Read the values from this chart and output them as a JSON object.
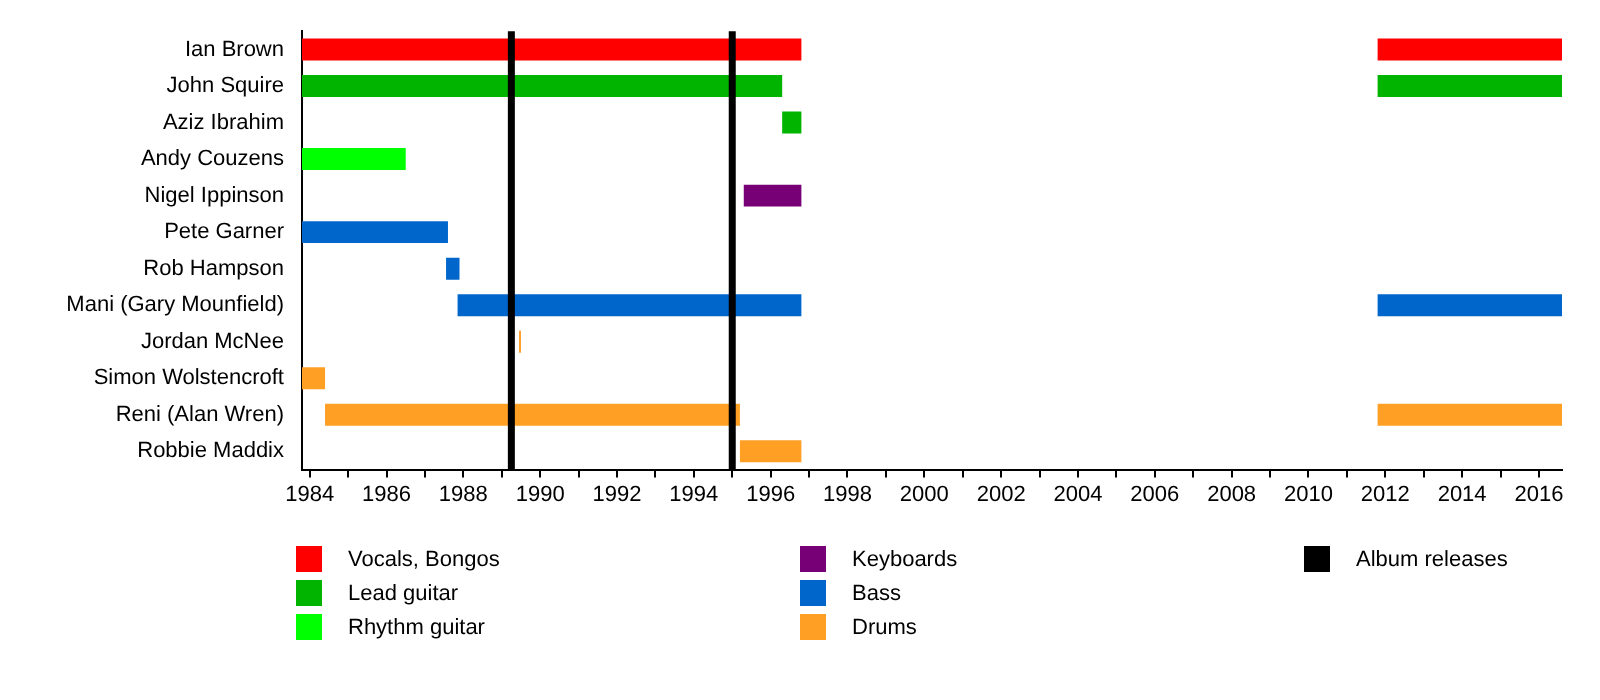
{
  "chart_data": {
    "type": "bar",
    "orientation": "horizontal",
    "legend": "bottom",
    "grid": false,
    "categories": [
      "Ian Brown",
      "John Squire",
      "Aziz Ibrahim",
      "Andy Couzens",
      "Nigel Ippinson",
      "Pete Garner",
      "Rob Hampson",
      "Mani (Gary Mounfield)",
      "Jordan McNee",
      "Simon Wolstencroft",
      "Reni (Alan Wren)",
      "Robbie Maddix"
    ],
    "xlim": [
      1983.8,
      2016.6
    ],
    "xticks": [
      1984,
      {
        "value": 1985,
        "label": null
      },
      1986,
      {
        "value": 1987,
        "label": null
      },
      1988,
      {
        "value": 1989,
        "label": null
      },
      1990,
      {
        "value": 1991,
        "label": null
      },
      1992,
      {
        "value": 1993,
        "label": null
      },
      1994,
      {
        "value": 1995,
        "label": null
      },
      1996,
      {
        "value": 1997,
        "label": null
      },
      1998,
      {
        "value": 1999,
        "label": null
      },
      2000,
      {
        "value": 2001,
        "label": null
      },
      2002,
      {
        "value": 2003,
        "label": null
      },
      2004,
      {
        "value": 2005,
        "label": null
      },
      2006,
      {
        "value": 2007,
        "label": null
      },
      2008,
      {
        "value": 2009,
        "label": null
      },
      2010,
      {
        "value": 2011,
        "label": null
      },
      2012,
      {
        "value": 2013,
        "label": null
      },
      2014,
      {
        "value": 2015,
        "label": null
      },
      2016
    ],
    "series": [
      {
        "name": "Vocals, Bongos",
        "color": "#ff0000",
        "base": [
          1983.8,
          null,
          null,
          null,
          null,
          null,
          null,
          null,
          null,
          null,
          null,
          null
        ],
        "values": [
          13.0,
          null,
          null,
          null,
          null,
          null,
          null,
          null,
          null,
          null,
          null,
          null
        ]
      },
      {
        "color": "#ff0000",
        "base": [
          2011.8,
          null,
          null,
          null,
          null,
          null,
          null,
          null,
          null,
          null,
          null,
          null
        ],
        "values": [
          4.8,
          null,
          null,
          null,
          null,
          null,
          null,
          null,
          null,
          null,
          null,
          null
        ]
      },
      {
        "name": "Lead guitar",
        "color": "#00b400",
        "base": [
          null,
          1983.8,
          1996.3,
          null,
          null,
          null,
          null,
          null,
          null,
          null,
          null,
          null
        ],
        "values": [
          null,
          12.5,
          0.5,
          null,
          null,
          null,
          null,
          null,
          null,
          null,
          null,
          null
        ]
      },
      {
        "color": "#00b400",
        "base": [
          null,
          2011.8,
          null,
          null,
          null,
          null,
          null,
          null,
          null,
          null,
          null,
          null
        ],
        "values": [
          null,
          4.8,
          null,
          null,
          null,
          null,
          null,
          null,
          null,
          null,
          null,
          null
        ]
      },
      {
        "name": "Rhythm guitar",
        "color": "#00ff00",
        "base": [
          null,
          null,
          null,
          1983.8,
          null,
          null,
          null,
          null,
          null,
          null,
          null,
          null
        ],
        "values": [
          null,
          null,
          null,
          2.7,
          null,
          null,
          null,
          null,
          null,
          null,
          null,
          null
        ]
      },
      {
        "name": "Keyboards",
        "color": "#770077",
        "base": [
          null,
          null,
          null,
          null,
          1995.3,
          null,
          null,
          null,
          null,
          null,
          null,
          null
        ],
        "values": [
          null,
          null,
          null,
          null,
          1.5,
          null,
          null,
          null,
          null,
          null,
          null,
          null
        ]
      },
      {
        "name": "Bass",
        "color": "#0066cc",
        "base": [
          null,
          null,
          null,
          null,
          null,
          1983.8,
          1987.55,
          1987.85,
          null,
          null,
          null,
          null
        ],
        "values": [
          null,
          null,
          null,
          null,
          null,
          3.8,
          0.35,
          8.95,
          null,
          null,
          null,
          null
        ]
      },
      {
        "color": "#0066cc",
        "base": [
          null,
          null,
          null,
          null,
          null,
          null,
          null,
          2011.8,
          null,
          null,
          null,
          null
        ],
        "values": [
          null,
          null,
          null,
          null,
          null,
          null,
          null,
          4.8,
          null,
          null,
          null,
          null
        ]
      },
      {
        "name": "Drums",
        "color": "#ff9f24",
        "base": [
          null,
          null,
          null,
          null,
          null,
          null,
          null,
          null,
          1989.45,
          1983.8,
          1984.4,
          1995.2
        ],
        "values": [
          null,
          null,
          null,
          null,
          null,
          null,
          null,
          null,
          0.05,
          0.6,
          10.8,
          1.6
        ]
      },
      {
        "color": "#ff9f24",
        "base": [
          null,
          null,
          null,
          null,
          null,
          null,
          null,
          null,
          null,
          null,
          2011.8,
          null
        ],
        "values": [
          null,
          null,
          null,
          null,
          null,
          null,
          null,
          null,
          null,
          null,
          4.8,
          null
        ]
      }
    ],
    "ref_lines": [
      {
        "axis": "x",
        "value": 1989.25,
        "label": "Album releases",
        "color": "#000000"
      },
      {
        "axis": "x",
        "value": 1995.0,
        "color": "#000000"
      }
    ]
  }
}
